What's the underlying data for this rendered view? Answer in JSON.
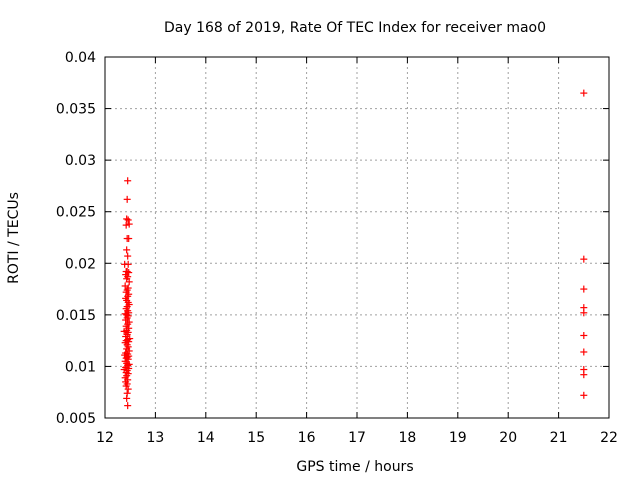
{
  "chart_data": {
    "type": "scatter",
    "title": "Day 168 of 2019, Rate Of TEC Index for receiver mao0",
    "xlabel": "GPS time / hours",
    "ylabel": "ROTI / TECUs",
    "xlim": [
      12,
      22
    ],
    "ylim": [
      0.005,
      0.04
    ],
    "xticks": [
      12,
      13,
      14,
      15,
      16,
      17,
      18,
      19,
      20,
      21,
      22
    ],
    "xtick_labels": [
      "12",
      "13",
      "14",
      "15",
      "16",
      "17",
      "18",
      "19",
      "20",
      "21",
      "22"
    ],
    "yticks": [
      0.005,
      0.01,
      0.015,
      0.02,
      0.025,
      0.03,
      0.035,
      0.04
    ],
    "ytick_labels": [
      "0.005",
      "0.01",
      "0.015",
      "0.02",
      "0.025",
      "0.03",
      "0.035",
      "0.04"
    ],
    "grid": true,
    "marker": "+",
    "color": "#ff0000",
    "series": [
      {
        "name": "mao0",
        "x": [
          12.45,
          12.44,
          12.43,
          12.46,
          12.42,
          12.48,
          12.44,
          12.47,
          12.43,
          12.45,
          12.46,
          12.39,
          12.42,
          12.44,
          12.47,
          12.41,
          12.45,
          12.43,
          12.48,
          12.4,
          12.46,
          12.44,
          12.42,
          12.47,
          12.45,
          12.41,
          12.43,
          12.46,
          12.48,
          12.44,
          12.42,
          12.45,
          12.47,
          12.4,
          12.43,
          12.46,
          12.44,
          12.41,
          12.48,
          12.45,
          12.42,
          12.47,
          12.43,
          12.38,
          12.46,
          12.44,
          12.41,
          12.49,
          12.45,
          12.42,
          12.47,
          12.4,
          12.44,
          12.46,
          12.43,
          12.48,
          12.41,
          12.45,
          12.39,
          12.47,
          12.44,
          12.42,
          12.46,
          12.4,
          12.43,
          12.48,
          12.45,
          12.41,
          12.47,
          12.38,
          12.44,
          12.42,
          12.46,
          12.43,
          12.4,
          12.45,
          12.41,
          12.44,
          12.42,
          12.46,
          12.44,
          12.43,
          12.45,
          21.5,
          21.5,
          21.5,
          21.5,
          21.5,
          21.5,
          21.5,
          21.5,
          21.5,
          21.5
        ],
        "y": [
          0.028,
          0.0262,
          0.0243,
          0.0242,
          0.0237,
          0.0238,
          0.0224,
          0.0224,
          0.0213,
          0.0207,
          0.0199,
          0.0199,
          0.0192,
          0.0192,
          0.0191,
          0.0189,
          0.0187,
          0.0185,
          0.0182,
          0.0178,
          0.0176,
          0.0174,
          0.0172,
          0.017,
          0.0168,
          0.0166,
          0.0164,
          0.0162,
          0.016,
          0.0158,
          0.0156,
          0.0154,
          0.0152,
          0.0151,
          0.015,
          0.0149,
          0.0147,
          0.0145,
          0.0143,
          0.0141,
          0.0139,
          0.0137,
          0.0135,
          0.0134,
          0.0133,
          0.0131,
          0.0129,
          0.0127,
          0.0126,
          0.0125,
          0.0124,
          0.0123,
          0.0121,
          0.0119,
          0.0117,
          0.0115,
          0.0113,
          0.0112,
          0.0111,
          0.011,
          0.0109,
          0.0108,
          0.0107,
          0.0105,
          0.0103,
          0.0102,
          0.0101,
          0.0099,
          0.0098,
          0.0097,
          0.0096,
          0.0094,
          0.0093,
          0.0091,
          0.0089,
          0.0087,
          0.0085,
          0.0083,
          0.0081,
          0.0078,
          0.0074,
          0.0069,
          0.0062,
          0.0365,
          0.0204,
          0.0175,
          0.0157,
          0.0152,
          0.013,
          0.0114,
          0.0097,
          0.0092,
          0.0072
        ]
      }
    ]
  }
}
